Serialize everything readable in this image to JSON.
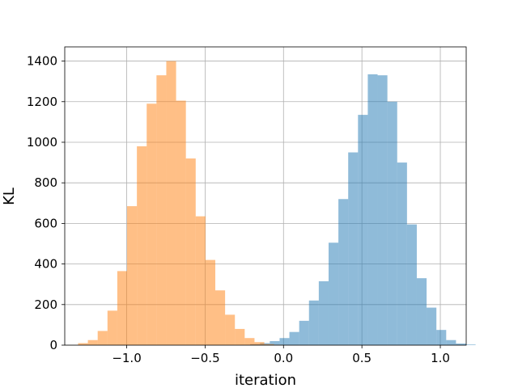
{
  "chart_data": {
    "type": "bar",
    "subtype": "overlaid-histogram",
    "title": "",
    "xlabel": "iteration",
    "ylabel": "KL",
    "xlim": [
      -1.395,
      1.165
    ],
    "ylim": [
      0,
      1470
    ],
    "grid": true,
    "legend": "none",
    "x_ticks": [
      -1.0,
      -0.5,
      0.0,
      0.5,
      1.0
    ],
    "x_tick_labels": [
      "−1.0",
      "−0.5",
      "0.0",
      "0.5",
      "1.0"
    ],
    "y_ticks": [
      0,
      200,
      400,
      600,
      800,
      1000,
      1200,
      1400
    ],
    "y_tick_labels": [
      "0",
      "200",
      "400",
      "600",
      "800",
      "1000",
      "1200",
      "1400"
    ],
    "series": [
      {
        "color": "#1f77b4",
        "opacity": 0.5,
        "bin_start": -0.275,
        "bin_width": 0.0625,
        "counts": [
          2,
          5,
          10,
          20,
          35,
          65,
          120,
          220,
          315,
          505,
          720,
          950,
          1135,
          1335,
          1330,
          1200,
          900,
          595,
          330,
          185,
          75,
          25,
          8,
          3
        ]
      },
      {
        "color": "#ff7f0e",
        "opacity": 0.5,
        "bin_start": -1.31,
        "bin_width": 0.0625,
        "counts": [
          10,
          25,
          70,
          170,
          365,
          685,
          980,
          1190,
          1330,
          1400,
          1205,
          920,
          635,
          420,
          270,
          150,
          80,
          35,
          15,
          5,
          2
        ]
      }
    ]
  }
}
